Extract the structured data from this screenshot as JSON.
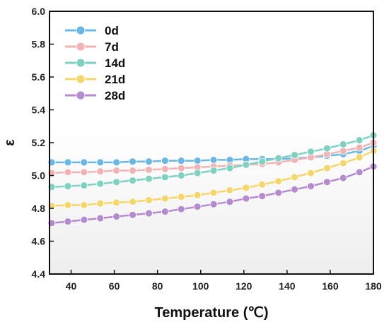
{
  "chart_data": {
    "type": "line",
    "title": "",
    "xlabel": "Temperature (℃)",
    "ylabel": "ε",
    "xlim": [
      30,
      180
    ],
    "ylim": [
      4.4,
      6.0
    ],
    "x_ticks": [
      "40",
      "60",
      "80",
      "100",
      "120",
      "140",
      "160",
      "180"
    ],
    "y_ticks": [
      "4.4",
      "4.6",
      "4.8",
      "5.0",
      "5.2",
      "5.4",
      "5.6",
      "5.8",
      "6.0"
    ],
    "grid": false,
    "legend_position": "top-left",
    "background": "white-to-light-gray gradient",
    "x": [
      31,
      38.5,
      46,
      53.5,
      61,
      68.5,
      76,
      83.5,
      91,
      98.5,
      106,
      113.5,
      121,
      128.5,
      136,
      143.5,
      151,
      158.5,
      166,
      173.5,
      180
    ],
    "series": [
      {
        "name": "0d",
        "color": "#6ab7e6",
        "values": [
          5.08,
          5.08,
          5.08,
          5.08,
          5.08,
          5.085,
          5.085,
          5.09,
          5.09,
          5.09,
          5.095,
          5.095,
          5.1,
          5.1,
          5.1,
          5.105,
          5.11,
          5.12,
          5.13,
          5.15,
          5.18
        ]
      },
      {
        "name": "7d",
        "color": "#f2b3b4",
        "values": [
          5.015,
          5.02,
          5.02,
          5.025,
          5.03,
          5.03,
          5.035,
          5.04,
          5.045,
          5.05,
          5.055,
          5.06,
          5.065,
          5.07,
          5.08,
          5.095,
          5.11,
          5.13,
          5.15,
          5.17,
          5.2
        ]
      },
      {
        "name": "14d",
        "color": "#7fd1c1",
        "values": [
          4.93,
          4.935,
          4.94,
          4.95,
          4.96,
          4.97,
          4.98,
          4.99,
          5.0,
          5.015,
          5.03,
          5.045,
          5.065,
          5.085,
          5.105,
          5.125,
          5.145,
          5.165,
          5.19,
          5.215,
          5.245
        ]
      },
      {
        "name": "21d",
        "color": "#f5d66a",
        "values": [
          4.815,
          4.82,
          4.82,
          4.83,
          4.835,
          4.84,
          4.85,
          4.86,
          4.87,
          4.88,
          4.895,
          4.91,
          4.925,
          4.945,
          4.965,
          4.99,
          5.015,
          5.045,
          5.075,
          5.11,
          5.15
        ]
      },
      {
        "name": "28d",
        "color": "#b58bd0",
        "values": [
          4.71,
          4.72,
          4.73,
          4.74,
          4.75,
          4.76,
          4.77,
          4.78,
          4.795,
          4.81,
          4.825,
          4.84,
          4.86,
          4.875,
          4.895,
          4.915,
          4.935,
          4.96,
          4.985,
          5.02,
          5.055
        ]
      }
    ]
  }
}
